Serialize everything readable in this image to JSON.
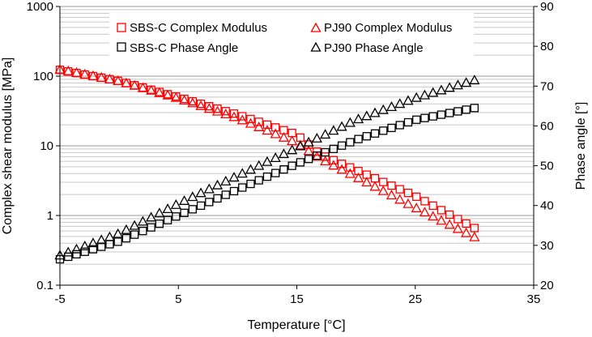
{
  "chart_data": {
    "type": "scatter",
    "xlabel": "Temperature [°C]",
    "ylabel_left": "Complex shear modulus [MPa]",
    "ylabel_right": "Phase angle [°]",
    "xlim": [
      -5,
      35
    ],
    "xticks": [
      -5,
      5,
      15,
      25,
      35
    ],
    "ylim_left": [
      0.1,
      1000
    ],
    "yscale_left": "log",
    "yticks_left": [
      0.1,
      1,
      10,
      100,
      1000
    ],
    "ylim_right": [
      20,
      90
    ],
    "yticks_right": [
      20,
      30,
      40,
      50,
      60,
      70,
      80,
      90
    ],
    "grid": "horizontal log-scale minor gridlines",
    "legend": "top, two columns",
    "colors": {
      "sbs": "#ff0000",
      "pj90": "#ff0000",
      "sbs_angle": "#000000",
      "pj90_angle": "#000000"
    },
    "series": [
      {
        "name": "SBS-C Complex Modulus",
        "axis": "left",
        "marker": "square",
        "color": "#ff0000",
        "x": [
          -5,
          0,
          5,
          10,
          15,
          17,
          20,
          25,
          30
        ],
        "y": [
          123,
          85,
          50,
          28,
          14.5,
          7.5,
          4.5,
          1.9,
          0.66
        ]
      },
      {
        "name": "PJ90 Complex Modulus",
        "axis": "left",
        "marker": "triangle",
        "color": "#ff0000",
        "x": [
          -5,
          0,
          5,
          10,
          15,
          17,
          20,
          25,
          30
        ],
        "y": [
          125,
          85,
          48,
          25,
          11,
          6.5,
          3.6,
          1.3,
          0.49
        ]
      },
      {
        "name": "SBS-C Phase Angle",
        "axis": "right",
        "marker": "square",
        "color": "#000000",
        "x": [
          -5,
          0,
          5,
          10,
          15,
          20,
          25,
          30
        ],
        "y": [
          26.5,
          31,
          37.5,
          44,
          50.5,
          56.5,
          61.5,
          64.5
        ]
      },
      {
        "name": "PJ90 Phase Angle",
        "axis": "right",
        "marker": "triangle",
        "color": "#000000",
        "x": [
          -5,
          0,
          5,
          10,
          15,
          20,
          25,
          30
        ],
        "y": [
          27.5,
          33,
          40.5,
          47.5,
          54.5,
          61.5,
          67,
          71.5
        ]
      }
    ]
  }
}
